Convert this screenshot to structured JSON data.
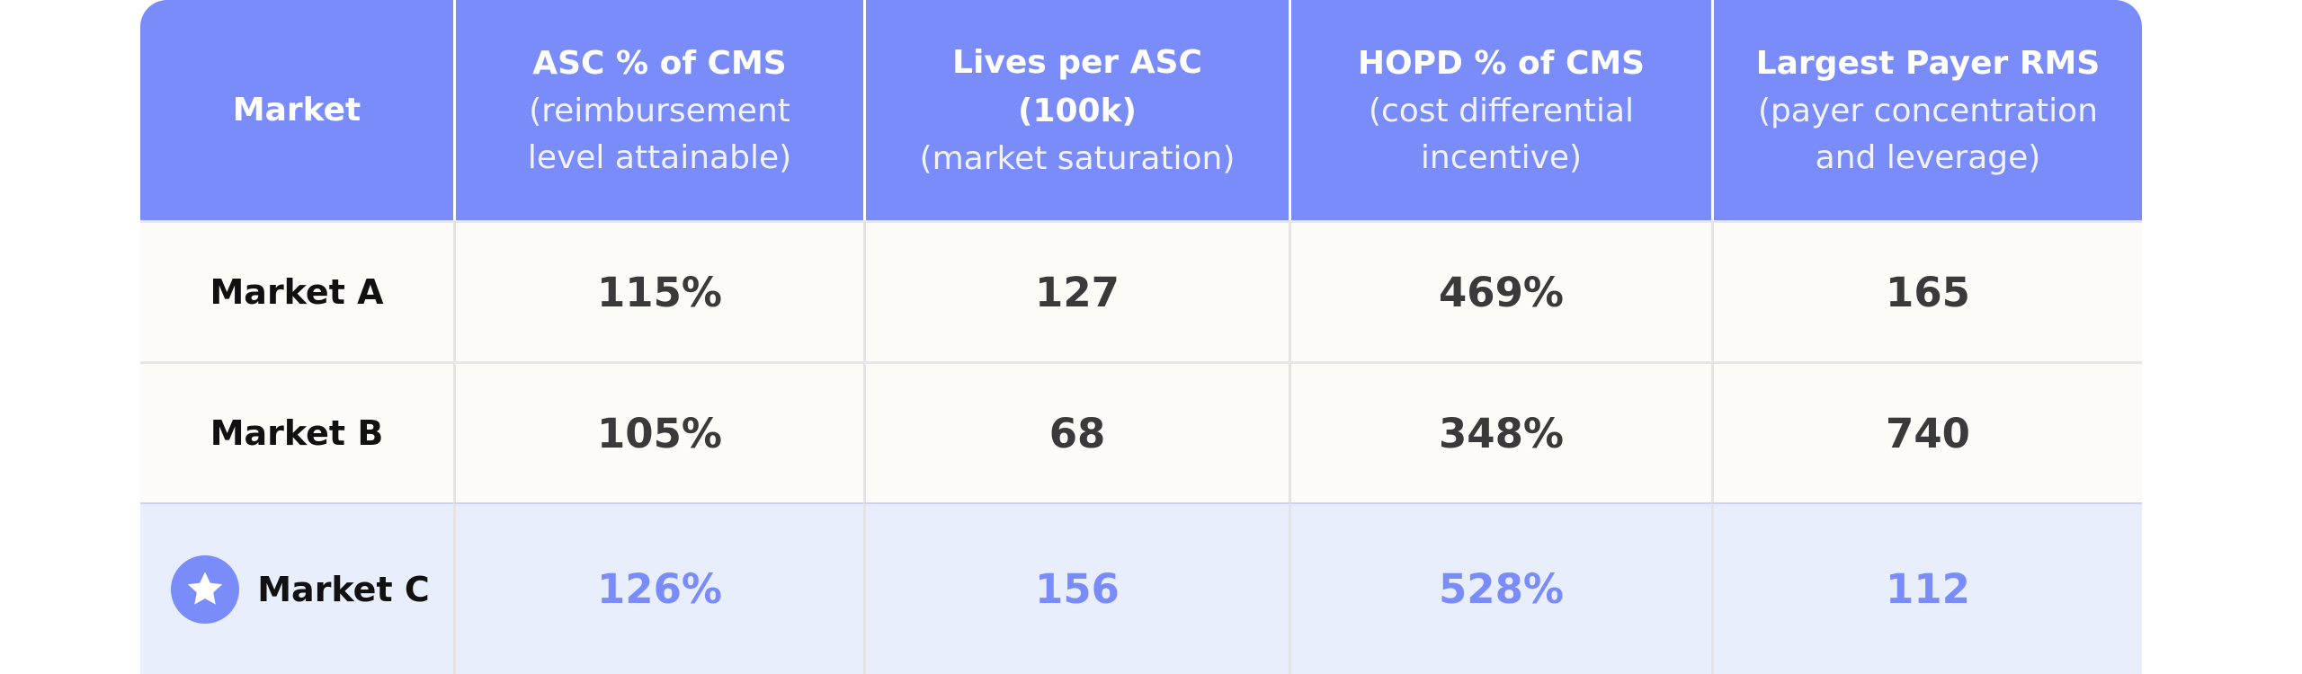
{
  "header": [
    {
      "title": "Market",
      "sub": ""
    },
    {
      "title": "ASC % of CMS",
      "sub": "(reimbursement\nlevel attainable)"
    },
    {
      "title": "Lives per ASC\n(100k)",
      "sub": "(market saturation)"
    },
    {
      "title": "HOPD % of CMS",
      "sub": "(cost differential\nincentive)"
    },
    {
      "title": "Largest Payer RMS",
      "sub": "(payer concentration\nand leverage)"
    }
  ],
  "rows": [
    {
      "market": "Market A",
      "asc": "115%",
      "lives": "127",
      "hopd": "469%",
      "payer": "165"
    },
    {
      "market": "Market B",
      "asc": "105%",
      "lives": "68",
      "hopd": "348%",
      "payer": "740"
    },
    {
      "market": "Market C",
      "asc": "126%",
      "lives": "156",
      "hopd": "528%",
      "payer": "112",
      "icon": "star-icon"
    }
  ],
  "colors": {
    "header_bg": "#7a8bfa",
    "row_bg": "#fdfbf7",
    "highlight_bg": "#e9eefd",
    "highlight_text": "#7a8bfa"
  }
}
